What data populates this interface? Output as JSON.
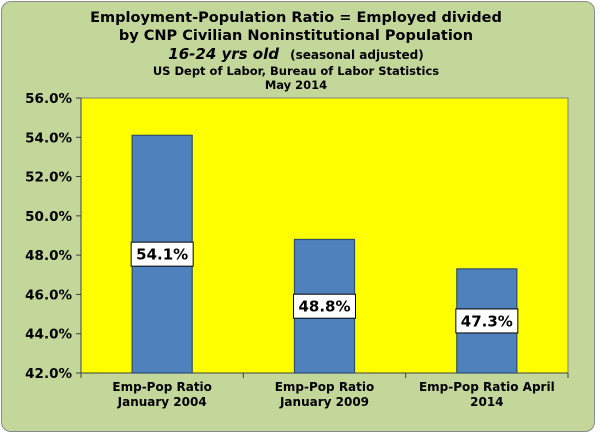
{
  "chart_data": {
    "type": "bar",
    "title": "Employment-Population Ratio = Employed divided by CNP Civilian Noninstitutional Population",
    "title_line1": "Employment-Population Ratio = Employed divided",
    "title_line2": "by CNP Civilian Noninstitutional Population",
    "subtitle_main": "16-24 yrs old",
    "subtitle_note": "(seasonal adjusted)",
    "source": "US Dept of Labor, Bureau of Labor Statistics",
    "date": "May 2014",
    "categories": [
      [
        "Emp-Pop Ratio",
        "January 2004"
      ],
      [
        "Emp-Pop Ratio",
        "January 2009"
      ],
      [
        "Emp-Pop Ratio April",
        "2014"
      ]
    ],
    "values": [
      54.1,
      48.8,
      47.3
    ],
    "data_labels": [
      "54.1%",
      "48.8%",
      "47.3%"
    ],
    "yticks": [
      "42.0%",
      "44.0%",
      "46.0%",
      "48.0%",
      "50.0%",
      "52.0%",
      "54.0%",
      "56.0%"
    ],
    "ylim": [
      42,
      56
    ],
    "ystep": 2,
    "xlabel": "",
    "ylabel": "",
    "grid": false,
    "legend": "none",
    "colors": {
      "frame_background": "#c4d79b",
      "plot_background": "#ffff00",
      "bar_fill": "#4f81bd",
      "bar_stroke": "#2f4f6f",
      "label_background": "#ffffff"
    }
  }
}
